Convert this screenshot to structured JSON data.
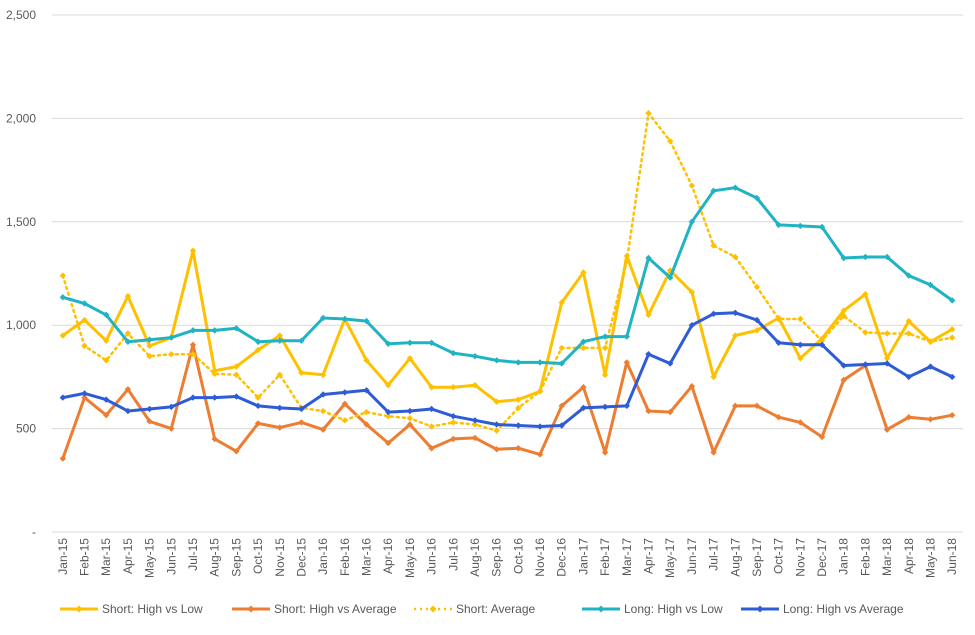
{
  "chart_data": {
    "type": "line",
    "title": "",
    "xlabel": "",
    "ylabel": "",
    "ylim": [
      0,
      2500
    ],
    "yticks": [
      0,
      500,
      1000,
      1500,
      2000,
      2500
    ],
    "ytick_labels": [
      "-",
      "500",
      "1,000",
      "1,500",
      "2,000",
      "2,500"
    ],
    "grid": "horizontal",
    "legend_position": "bottom",
    "categories": [
      "Jan-15",
      "Feb-15",
      "Mar-15",
      "Apr-15",
      "May-15",
      "Jun-15",
      "Jul-15",
      "Aug-15",
      "Sep-15",
      "Oct-15",
      "Nov-15",
      "Dec-15",
      "Jan-16",
      "Feb-16",
      "Mar-16",
      "Apr-16",
      "May-16",
      "Jun-16",
      "Jul-16",
      "Aug-16",
      "Sep-16",
      "Oct-16",
      "Nov-16",
      "Dec-16",
      "Jan-17",
      "Feb-17",
      "Mar-17",
      "Apr-17",
      "May-17",
      "Jun-17",
      "Jul-17",
      "Aug-17",
      "Sep-17",
      "Oct-17",
      "Nov-17",
      "Dec-17",
      "Jan-18",
      "Feb-18",
      "Mar-18",
      "Apr-18",
      "May-18",
      "Jun-18"
    ],
    "series": [
      {
        "name": "Short: High vs Low",
        "color": "#ffc000",
        "dash": "solid",
        "values": [
          950,
          1025,
          925,
          1140,
          900,
          940,
          1360,
          780,
          800,
          880,
          950,
          770,
          760,
          1030,
          830,
          710,
          840,
          700,
          700,
          710,
          630,
          640,
          680,
          1110,
          1255,
          760,
          1335,
          1050,
          1265,
          1160,
          750,
          950,
          975,
          1035,
          840,
          935,
          1070,
          1150,
          840,
          1020,
          920,
          980
        ]
      },
      {
        "name": "Short: High vs Average",
        "color": "#ed7d31",
        "dash": "solid",
        "values": [
          355,
          650,
          565,
          690,
          535,
          500,
          905,
          450,
          390,
          525,
          505,
          530,
          495,
          620,
          520,
          430,
          520,
          405,
          450,
          455,
          400,
          405,
          375,
          610,
          700,
          385,
          820,
          585,
          580,
          705,
          385,
          610,
          610,
          555,
          530,
          460,
          735,
          805,
          495,
          555,
          545,
          565
        ]
      },
      {
        "name": "Short: Average",
        "color": "#ffc000",
        "dash": "dotted",
        "values": [
          1240,
          900,
          830,
          960,
          850,
          860,
          860,
          765,
          760,
          650,
          760,
          600,
          585,
          540,
          580,
          560,
          550,
          510,
          530,
          520,
          490,
          600,
          680,
          890,
          890,
          890,
          1310,
          2025,
          1890,
          1675,
          1385,
          1330,
          1185,
          1030,
          1030,
          925,
          1045,
          965,
          960,
          960,
          920,
          940
        ]
      },
      {
        "name": "Long: High vs Low",
        "color": "#1fb3c4",
        "dash": "solid",
        "values": [
          1135,
          1105,
          1050,
          920,
          930,
          940,
          975,
          975,
          985,
          920,
          925,
          925,
          1035,
          1030,
          1020,
          910,
          915,
          915,
          865,
          850,
          830,
          820,
          820,
          815,
          920,
          945,
          945,
          1325,
          1230,
          1500,
          1650,
          1665,
          1615,
          1485,
          1480,
          1475,
          1325,
          1330,
          1330,
          1240,
          1195,
          1120
        ]
      },
      {
        "name": "Long: High vs Average",
        "color": "#2e5cd6",
        "dash": "solid",
        "values": [
          650,
          670,
          640,
          585,
          595,
          605,
          650,
          650,
          655,
          610,
          600,
          595,
          665,
          675,
          685,
          580,
          585,
          595,
          560,
          540,
          520,
          515,
          510,
          515,
          600,
          605,
          610,
          860,
          815,
          1000,
          1055,
          1060,
          1025,
          915,
          905,
          905,
          805,
          810,
          815,
          750,
          800,
          750
        ]
      }
    ]
  }
}
